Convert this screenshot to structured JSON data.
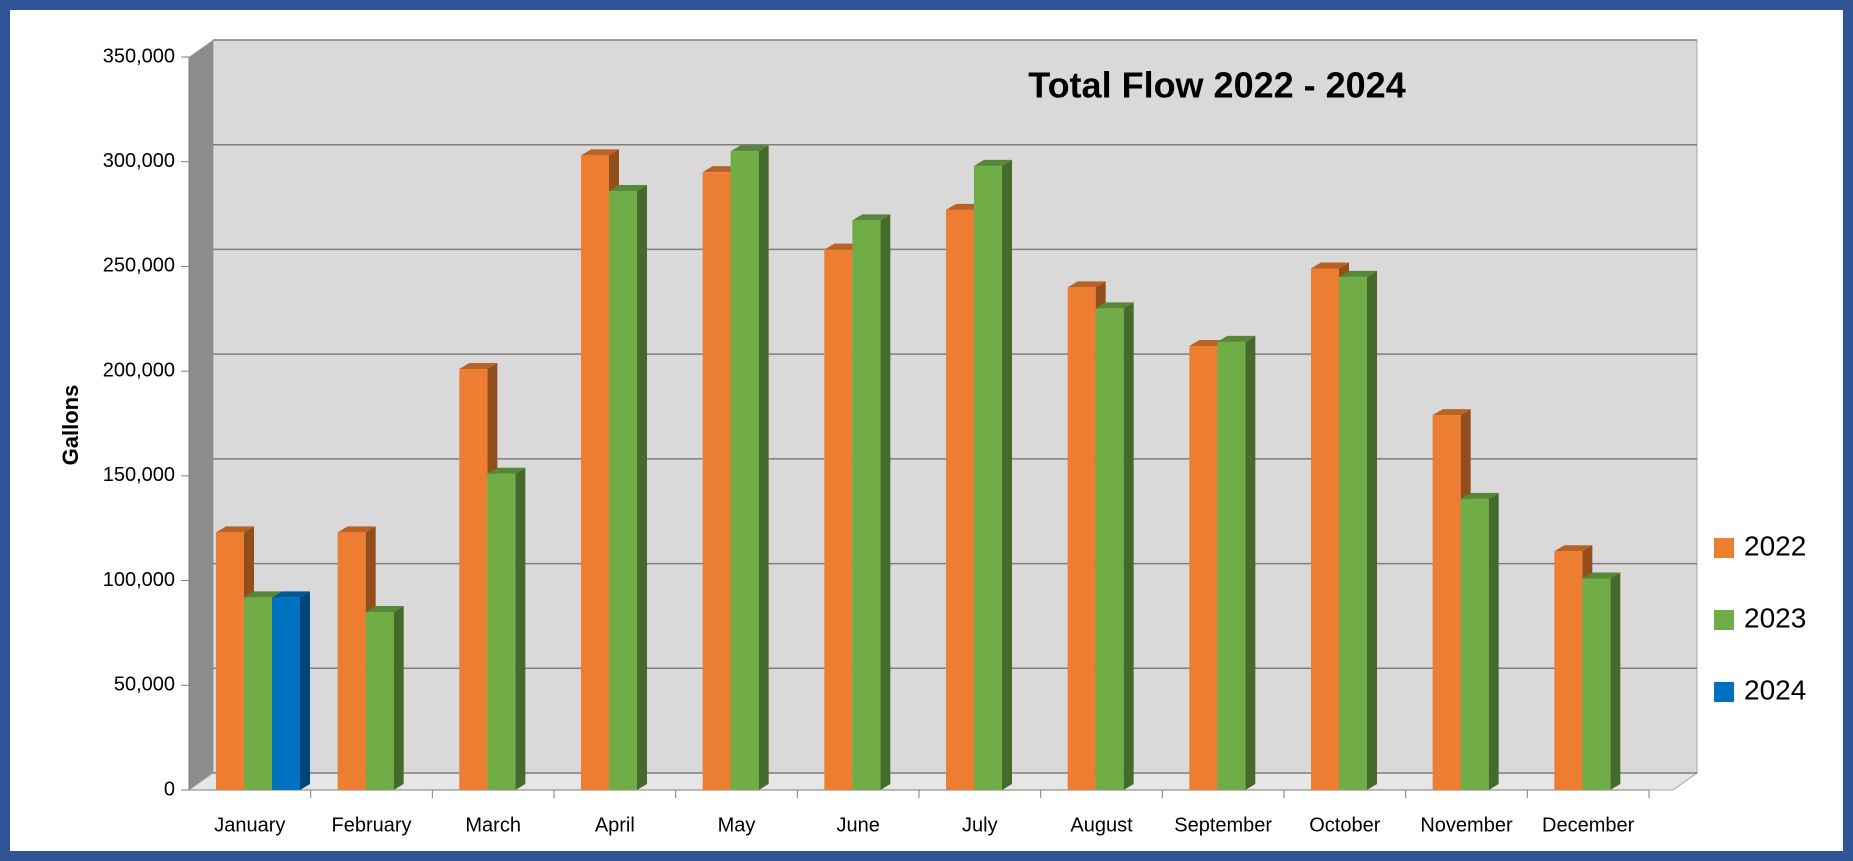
{
  "chart_data": {
    "type": "bar3d",
    "title": "Total Flow 2022 - 2024",
    "y_label": "Gallons",
    "categories": [
      "January",
      "February",
      "March",
      "April",
      "May",
      "June",
      "July",
      "August",
      "September",
      "October",
      "November",
      "December"
    ],
    "series": [
      {
        "name": "2022",
        "color": "#ed7d31",
        "values": [
          123000,
          123000,
          201000,
          303000,
          295000,
          258000,
          277000,
          240000,
          212000,
          249000,
          179000,
          114000
        ]
      },
      {
        "name": "2023",
        "color": "#70ad47",
        "values": [
          92000,
          85000,
          151000,
          286000,
          305000,
          272000,
          298000,
          230000,
          214000,
          245000,
          139000,
          101000
        ]
      },
      {
        "name": "2024",
        "color": "#0070c0",
        "values": [
          92000,
          null,
          null,
          null,
          null,
          null,
          null,
          null,
          null,
          null,
          null,
          null
        ]
      }
    ],
    "ylim": [
      0,
      350000
    ],
    "yticks": [
      0,
      {
        "value": 50000,
        "label": "50,000"
      },
      {
        "value": 100000,
        "label": "100,000"
      },
      {
        "value": 150000,
        "label": "150,000"
      },
      {
        "value": 200000,
        "label": "200,000"
      },
      {
        "value": 250000,
        "label": "250,000"
      },
      {
        "value": 300000,
        "label": "300,000"
      },
      {
        "value": 350000,
        "label": "350,000"
      }
    ],
    "grid": true,
    "legend": "right"
  }
}
